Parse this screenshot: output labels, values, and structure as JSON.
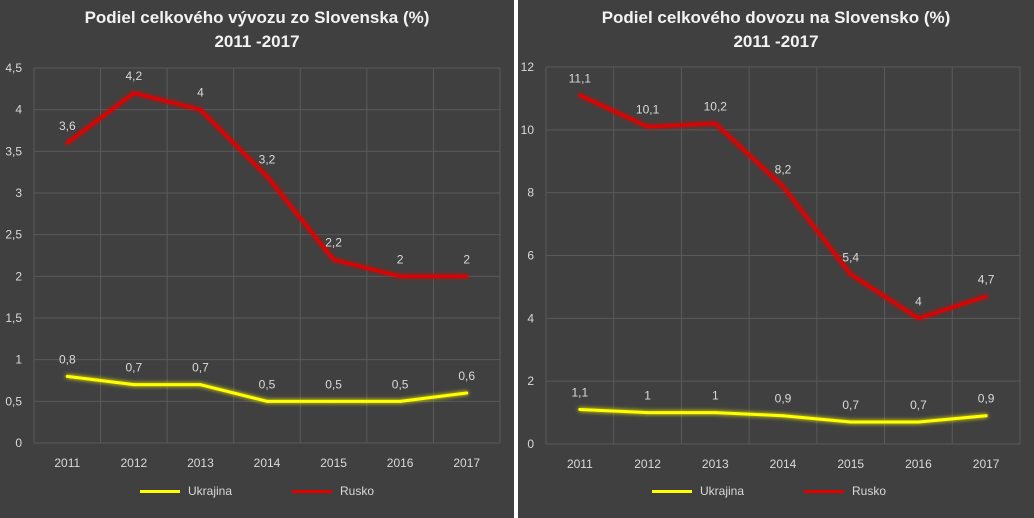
{
  "colors": {
    "ukrajina": "#ffff00",
    "rusko": "#e00000",
    "grid": "#5a5a5a",
    "text": "#d9d9d9"
  },
  "chart_data": [
    {
      "type": "line",
      "title": "Podiel celkového vývozu zo Slovenska (%)",
      "subtitle": "2011 -2017",
      "categories": [
        "2011",
        "2012",
        "2013",
        "2014",
        "2015",
        "2016",
        "2017"
      ],
      "ylim": [
        0,
        4.5
      ],
      "yticks": [
        "0",
        "0,5",
        "1",
        "1,5",
        "2",
        "2,5",
        "3",
        "3,5",
        "4",
        "4,5"
      ],
      "grid": true,
      "legend": "bottom",
      "series": [
        {
          "name": "Ukrajina",
          "values": [
            0.8,
            0.7,
            0.7,
            0.5,
            0.5,
            0.5,
            0.6
          ],
          "labels": [
            "0,8",
            "0,7",
            "0,7",
            "0,5",
            "0,5",
            "0,5",
            "0,6"
          ]
        },
        {
          "name": "Rusko",
          "values": [
            3.6,
            4.2,
            4,
            3.2,
            2.2,
            2,
            2
          ],
          "labels": [
            "3,6",
            "4,2",
            "4",
            "3,2",
            "2,2",
            "2",
            "2"
          ]
        }
      ]
    },
    {
      "type": "line",
      "title": "Podiel celkového dovozu na Slovensko (%)",
      "subtitle": "2011 -2017",
      "categories": [
        "2011",
        "2012",
        "2013",
        "2014",
        "2015",
        "2016",
        "2017"
      ],
      "ylim": [
        0,
        12
      ],
      "yticks": [
        "0",
        "2",
        "4",
        "6",
        "8",
        "10",
        "12"
      ],
      "grid": true,
      "legend": "bottom",
      "series": [
        {
          "name": "Ukrajina",
          "values": [
            1.1,
            1,
            1,
            0.9,
            0.7,
            0.7,
            0.9
          ],
          "labels": [
            "1,1",
            "1",
            "1",
            "0,9",
            "0,7",
            "0,7",
            "0,9"
          ]
        },
        {
          "name": "Rusko",
          "values": [
            11.1,
            10.1,
            10.2,
            8.2,
            5.4,
            4,
            4.7
          ],
          "labels": [
            "11,1",
            "10,1",
            "10,2",
            "8,2",
            "5,4",
            "4",
            "4,7"
          ]
        }
      ]
    }
  ]
}
